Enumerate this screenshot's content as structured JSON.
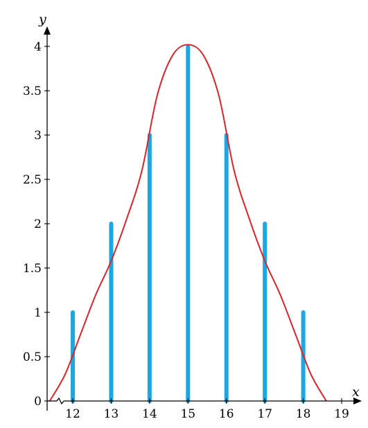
{
  "chart_data": {
    "type": "bar",
    "xlabel": "x",
    "ylabel": "y",
    "xlim": [
      11.35,
      19.3
    ],
    "ylim": [
      0,
      4.1
    ],
    "x_ticks": [
      12,
      13,
      14,
      15,
      16,
      17,
      18,
      19
    ],
    "y_ticks": [
      0,
      0.5,
      1,
      1.5,
      2,
      2.5,
      3,
      3.5,
      4
    ],
    "x_tick_labels": [
      "12",
      "13",
      "14",
      "15",
      "16",
      "17",
      "18",
      "19"
    ],
    "y_tick_labels": [
      "0",
      "0.5",
      "1",
      "1.5",
      "2",
      "2.5",
      "3",
      "3.5",
      "4"
    ],
    "axis_break": "x-axis near origin",
    "grid": false,
    "series": [
      {
        "kind": "bar",
        "color": "#1ba7e3",
        "x": [
          12,
          13,
          14,
          15,
          16,
          17,
          18
        ],
        "values": [
          1,
          2,
          3,
          4,
          3,
          2,
          1
        ]
      },
      {
        "kind": "curve",
        "color": "#e02127",
        "x": [
          11.4,
          11.8,
          12.2,
          12.6,
          13.0,
          13.4,
          13.8,
          14.2,
          14.6,
          15.0,
          15.4,
          15.8,
          16.2,
          16.6,
          17.0,
          17.4,
          17.8,
          18.2,
          18.6
        ],
        "values": [
          0.0,
          0.3,
          0.75,
          1.2,
          1.58,
          2.05,
          2.6,
          3.45,
          3.9,
          4.02,
          3.9,
          3.45,
          2.6,
          2.05,
          1.58,
          1.2,
          0.75,
          0.3,
          0.0
        ]
      }
    ]
  }
}
